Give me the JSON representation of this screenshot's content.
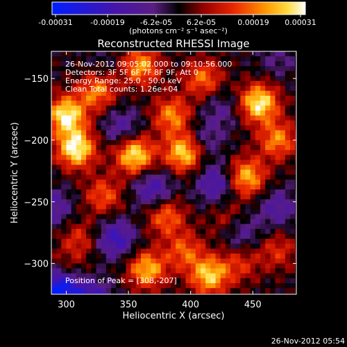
{
  "colorbar": {
    "range": [
      -0.00031,
      0.00031
    ],
    "tick_labels": [
      "-0.00031",
      "-0.00019",
      "-6.2e-05",
      "6.2e-05",
      "0.00019",
      "0.00031"
    ],
    "units_label": "(photons cm⁻² s⁻¹ asec⁻²)",
    "colormap": "idl-purple-red-yellow-white"
  },
  "image": {
    "title": "Reconstructed RHESSI Image",
    "info_lines": [
      "26-Nov-2012 09:05:02.000 to 09:10:56.000",
      "Detectors: 3F 5F 6F 7F 8F 9F, Att 0",
      "Energy Range: 25.0 - 50.0 keV",
      "Clean    Total counts: 1.26e+04"
    ],
    "peak_label": "Position of Peak = [308,-207]",
    "xlabel": "Heliocentric X (arcsec)",
    "ylabel": "Heliocentric Y (arcsec)",
    "footer_timestamp": "26-Nov-2012 05:54"
  },
  "chart_data": {
    "type": "heatmap",
    "title": "Reconstructed RHESSI Image",
    "xlabel": "Heliocentric X (arcsec)",
    "ylabel": "Heliocentric Y (arcsec)",
    "xlim": [
      288,
      485
    ],
    "ylim": [
      -325,
      -128
    ],
    "x_ticks": [
      300,
      350,
      400,
      450
    ],
    "y_ticks": [
      -150,
      -200,
      -250,
      -300
    ],
    "value_range": [
      -0.00031,
      0.00031
    ],
    "peak": [
      308,
      -207
    ],
    "grid": false,
    "hot_spots": [
      {
        "x": 308,
        "y": -207,
        "v": 0.00031
      },
      {
        "x": 300,
        "y": -180,
        "v": 0.0003
      },
      {
        "x": 325,
        "y": -160,
        "v": 0.0002
      },
      {
        "x": 360,
        "y": -140,
        "v": 0.00022
      },
      {
        "x": 355,
        "y": -212,
        "v": 0.00029
      },
      {
        "x": 395,
        "y": -210,
        "v": 0.00028
      },
      {
        "x": 385,
        "y": -180,
        "v": 0.0002
      },
      {
        "x": 410,
        "y": -150,
        "v": 0.00018
      },
      {
        "x": 455,
        "y": -170,
        "v": 0.0003
      },
      {
        "x": 470,
        "y": -200,
        "v": 0.0002
      },
      {
        "x": 445,
        "y": -230,
        "v": 0.00024
      },
      {
        "x": 330,
        "y": -245,
        "v": 0.00016
      },
      {
        "x": 310,
        "y": -280,
        "v": 0.00012
      },
      {
        "x": 300,
        "y": -305,
        "v": 8e-05
      },
      {
        "x": 380,
        "y": -262,
        "v": 0.00018
      },
      {
        "x": 415,
        "y": -310,
        "v": 0.00026
      },
      {
        "x": 395,
        "y": -290,
        "v": 0.00016
      },
      {
        "x": 365,
        "y": -305,
        "v": 0.00024
      },
      {
        "x": 470,
        "y": -290,
        "v": 0.00012
      },
      {
        "x": 440,
        "y": -300,
        "v": 0.00012
      },
      {
        "x": 430,
        "y": -265,
        "v": 0.0001
      }
    ],
    "cold_spots": [
      {
        "x": 345,
        "y": -190,
        "v": -0.00012
      },
      {
        "x": 370,
        "y": -240,
        "v": -0.00016
      },
      {
        "x": 340,
        "y": -280,
        "v": -0.00018
      },
      {
        "x": 320,
        "y": -330,
        "v": -0.0002
      },
      {
        "x": 295,
        "y": -320,
        "v": -0.00031
      },
      {
        "x": 420,
        "y": -235,
        "v": -0.00016
      },
      {
        "x": 440,
        "y": -275,
        "v": -0.00012
      },
      {
        "x": 410,
        "y": -200,
        "v": -0.0001
      },
      {
        "x": 470,
        "y": -255,
        "v": -0.00012
      },
      {
        "x": 425,
        "y": -175,
        "v": -8e-05
      },
      {
        "x": 330,
        "y": -140,
        "v": -4e-05
      },
      {
        "x": 290,
        "y": -255,
        "v": -0.00012
      },
      {
        "x": 470,
        "y": -135,
        "v": -6e-05
      }
    ]
  }
}
